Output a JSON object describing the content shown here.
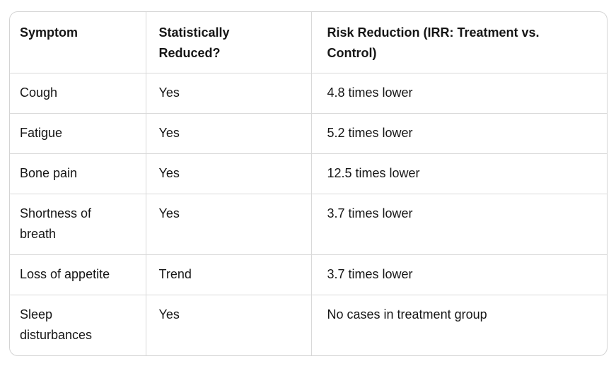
{
  "colors": {
    "background": "#ffffff",
    "card_border": "#d4d4d4",
    "grid_line": "#d9d9d9",
    "text": "#161616"
  },
  "table": {
    "columns": [
      {
        "label": "Symptom"
      },
      {
        "label": "Statistically Reduced?"
      },
      {
        "label": "Risk Reduction (IRR: Treatment vs. Control)"
      }
    ],
    "rows": [
      {
        "symptom": "Cough",
        "statistically_reduced": "Yes",
        "risk_reduction": "4.8 times lower"
      },
      {
        "symptom": "Fatigue",
        "statistically_reduced": "Yes",
        "risk_reduction": "5.2 times lower"
      },
      {
        "symptom": "Bone pain",
        "statistically_reduced": "Yes",
        "risk_reduction": "12.5 times lower"
      },
      {
        "symptom": "Shortness of breath",
        "statistically_reduced": "Yes",
        "risk_reduction": "3.7 times lower"
      },
      {
        "symptom": "Loss of appetite",
        "statistically_reduced": "Trend",
        "risk_reduction": "3.7 times lower"
      },
      {
        "symptom": "Sleep disturbances",
        "statistically_reduced": "Yes",
        "risk_reduction": "No cases in treatment group"
      }
    ]
  }
}
